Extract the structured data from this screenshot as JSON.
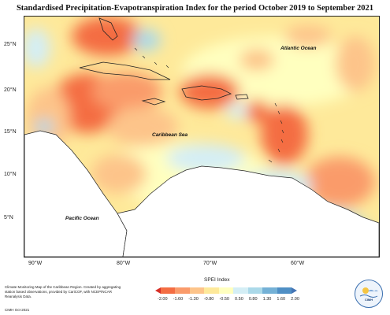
{
  "title": "Standardised Precipitation-Evapotranspiration Index for the period October 2019 to September 2021",
  "latitude_labels": [
    "25°N",
    "20°N",
    "15°N",
    "10°N",
    "5°N"
  ],
  "longitude_labels": [
    "90°W",
    "80°W",
    "70°W",
    "60°W"
  ],
  "ocean_labels": {
    "atlantic": "Atlantic Ocean",
    "caribbean": "Caribbean Sea",
    "pacific": "Pacific Ocean"
  },
  "legend": {
    "title": "SPEI Index",
    "ticks": [
      "-2.00",
      "-1.60",
      "-1.30",
      "-0.80",
      "-0.50",
      "0.50",
      "0.80",
      "1.30",
      "1.60",
      "2.00"
    ],
    "colors": [
      "#f46d43",
      "#fa9b6b",
      "#fdc48a",
      "#fee99a",
      "#ffffbf",
      "#d4eef5",
      "#abd9e9",
      "#74b1d6",
      "#4f8fc5"
    ]
  },
  "credit_text": "Climate Monitoring Map of the Caribbean Region. Created by aggregating station based observations, provided by CariCOF, with NCEP/NCAR Reanalysis Data.",
  "date_stamp": "CIMH Oct-2021",
  "logo_text": "CIMH"
}
